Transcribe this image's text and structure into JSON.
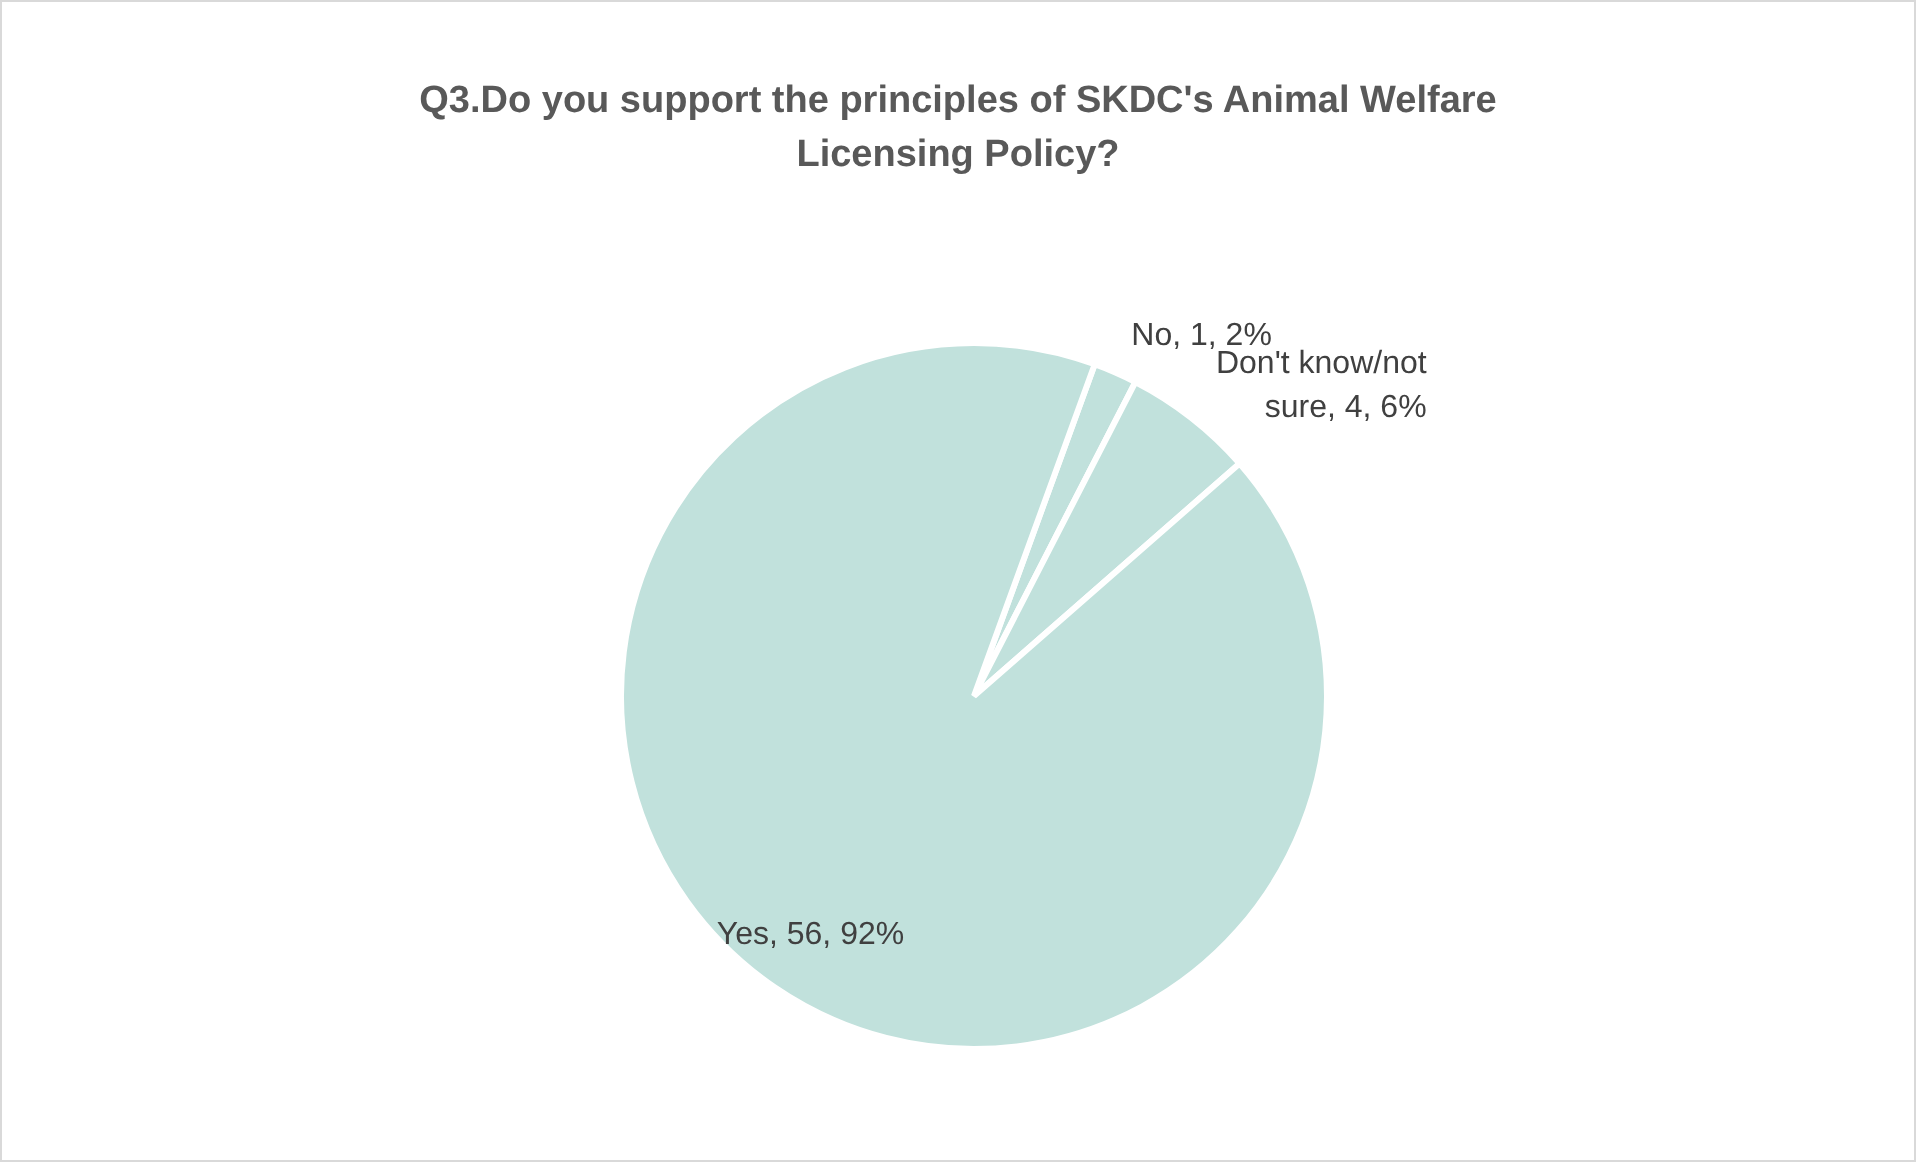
{
  "chart_data": {
    "type": "pie",
    "title": "Q3.Do you support the principles of SKDC's Animal Welfare Licensing Policy?",
    "categories": [
      "No",
      "Don't know/not sure",
      "Yes"
    ],
    "values": [
      2,
      6,
      92
    ],
    "colors": [
      "#c1e1dc",
      "#c1e1dc",
      "#c1e1dc"
    ],
    "value_labels": [
      "1, 2%",
      "4, 6%",
      "56, 92%"
    ],
    "legend": false
  }
}
